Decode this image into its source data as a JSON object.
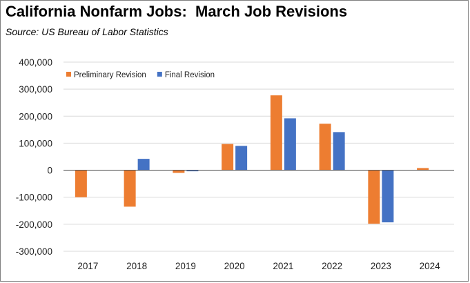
{
  "title": "California Nonfarm Jobs:  March Job Revisions",
  "subtitle": "Source:  US Bureau of Labor Statistics",
  "chart_data": {
    "type": "bar",
    "categories": [
      "2017",
      "2018",
      "2019",
      "2020",
      "2021",
      "2022",
      "2023",
      "2024"
    ],
    "series": [
      {
        "name": "Preliminary Revision",
        "color": "#ed7d31",
        "values": [
          -100000,
          -135000,
          -10000,
          97000,
          277000,
          172000,
          -198000,
          8000
        ]
      },
      {
        "name": "Final Revision",
        "color": "#4472c4",
        "values": [
          0,
          42000,
          -4000,
          90000,
          192000,
          141000,
          -193000,
          null
        ]
      }
    ],
    "ylim": [
      -300000,
      400000
    ],
    "yticks": [
      400000,
      300000,
      200000,
      100000,
      0,
      -100000,
      -200000,
      -300000
    ],
    "ytick_labels": [
      "400,000",
      "300,000",
      "200,000",
      "100,000",
      "0",
      "-100,000",
      "-200,000",
      "-300,000"
    ],
    "grid": true,
    "legend": "top-left"
  }
}
